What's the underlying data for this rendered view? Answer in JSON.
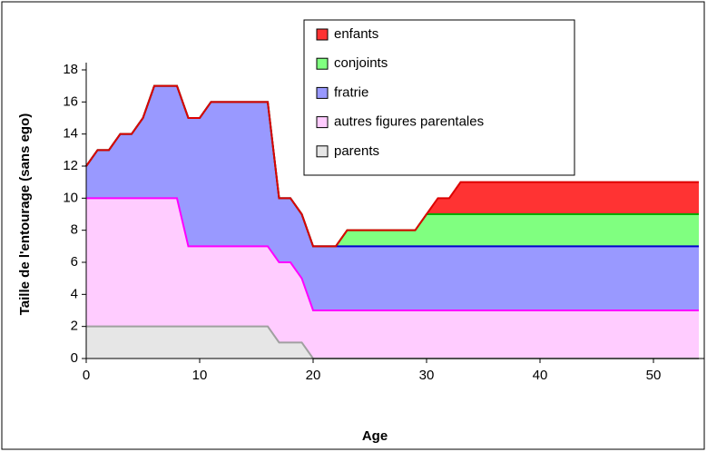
{
  "chart_data": {
    "type": "stacked_area",
    "xlabel": "Age",
    "ylabel": "Taille de l'entourage (sans ego)",
    "x": [
      0,
      1,
      2,
      3,
      4,
      5,
      6,
      7,
      8,
      9,
      10,
      11,
      12,
      13,
      14,
      15,
      16,
      17,
      18,
      19,
      20,
      21,
      22,
      23,
      24,
      25,
      26,
      27,
      28,
      29,
      30,
      31,
      32,
      33,
      34,
      35,
      36,
      37,
      38,
      39,
      40,
      41,
      42,
      43,
      44,
      45,
      46,
      47,
      48,
      49,
      50,
      51,
      52,
      53,
      54
    ],
    "series": [
      {
        "name": "parents",
        "color": "#e6e6e6",
        "line": "#a0a0a0",
        "values": [
          2,
          2,
          2,
          2,
          2,
          2,
          2,
          2,
          2,
          2,
          2,
          2,
          2,
          2,
          2,
          2,
          2,
          1,
          1,
          1,
          0,
          0,
          0,
          0,
          0,
          0,
          0,
          0,
          0,
          0,
          0,
          0,
          0,
          0,
          0,
          0,
          0,
          0,
          0,
          0,
          0,
          0,
          0,
          0,
          0,
          0,
          0,
          0,
          0,
          0,
          0,
          0,
          0,
          0,
          0
        ]
      },
      {
        "name": "autres figures parentales",
        "color": "#ffccff",
        "line": "#ff00ff",
        "values": [
          8,
          8,
          8,
          8,
          8,
          8,
          8,
          8,
          8,
          5,
          5,
          5,
          5,
          5,
          5,
          5,
          5,
          5,
          5,
          4,
          3,
          3,
          3,
          3,
          3,
          3,
          3,
          3,
          3,
          3,
          3,
          3,
          3,
          3,
          3,
          3,
          3,
          3,
          3,
          3,
          3,
          3,
          3,
          3,
          3,
          3,
          3,
          3,
          3,
          3,
          3,
          3,
          3,
          3,
          3
        ]
      },
      {
        "name": "fratrie",
        "color": "#9999ff",
        "line": "#0000cc",
        "values": [
          2,
          3,
          3,
          4,
          4,
          5,
          7,
          7,
          7,
          8,
          8,
          9,
          9,
          9,
          9,
          9,
          9,
          4,
          4,
          4,
          4,
          4,
          4,
          4,
          4,
          4,
          4,
          4,
          4,
          4,
          4,
          4,
          4,
          4,
          4,
          4,
          4,
          4,
          4,
          4,
          4,
          4,
          4,
          4,
          4,
          4,
          4,
          4,
          4,
          4,
          4,
          4,
          4,
          4,
          4
        ]
      },
      {
        "name": "conjoints",
        "color": "#80ff80",
        "line": "#00aa00",
        "values": [
          0,
          0,
          0,
          0,
          0,
          0,
          0,
          0,
          0,
          0,
          0,
          0,
          0,
          0,
          0,
          0,
          0,
          0,
          0,
          0,
          0,
          0,
          0,
          1,
          1,
          1,
          1,
          1,
          1,
          1,
          2,
          2,
          2,
          2,
          2,
          2,
          2,
          2,
          2,
          2,
          2,
          2,
          2,
          2,
          2,
          2,
          2,
          2,
          2,
          2,
          2,
          2,
          2,
          2,
          2
        ]
      },
      {
        "name": "enfants",
        "color": "#ff3333",
        "line": "#dd0000",
        "values": [
          0,
          0,
          0,
          0,
          0,
          0,
          0,
          0,
          0,
          0,
          0,
          0,
          0,
          0,
          0,
          0,
          0,
          0,
          0,
          0,
          0,
          0,
          0,
          0,
          0,
          0,
          0,
          0,
          0,
          0,
          0,
          1,
          1,
          2,
          2,
          2,
          2,
          2,
          2,
          2,
          2,
          2,
          2,
          2,
          2,
          2,
          2,
          2,
          2,
          2,
          2,
          2,
          2,
          2,
          2
        ]
      }
    ],
    "xlim": [
      0,
      54
    ],
    "xticks": [
      0,
      10,
      20,
      30,
      40,
      50
    ],
    "ylim": [
      0,
      18
    ],
    "yticks": [
      0,
      2,
      4,
      6,
      8,
      10,
      12,
      14,
      16,
      18
    ]
  }
}
